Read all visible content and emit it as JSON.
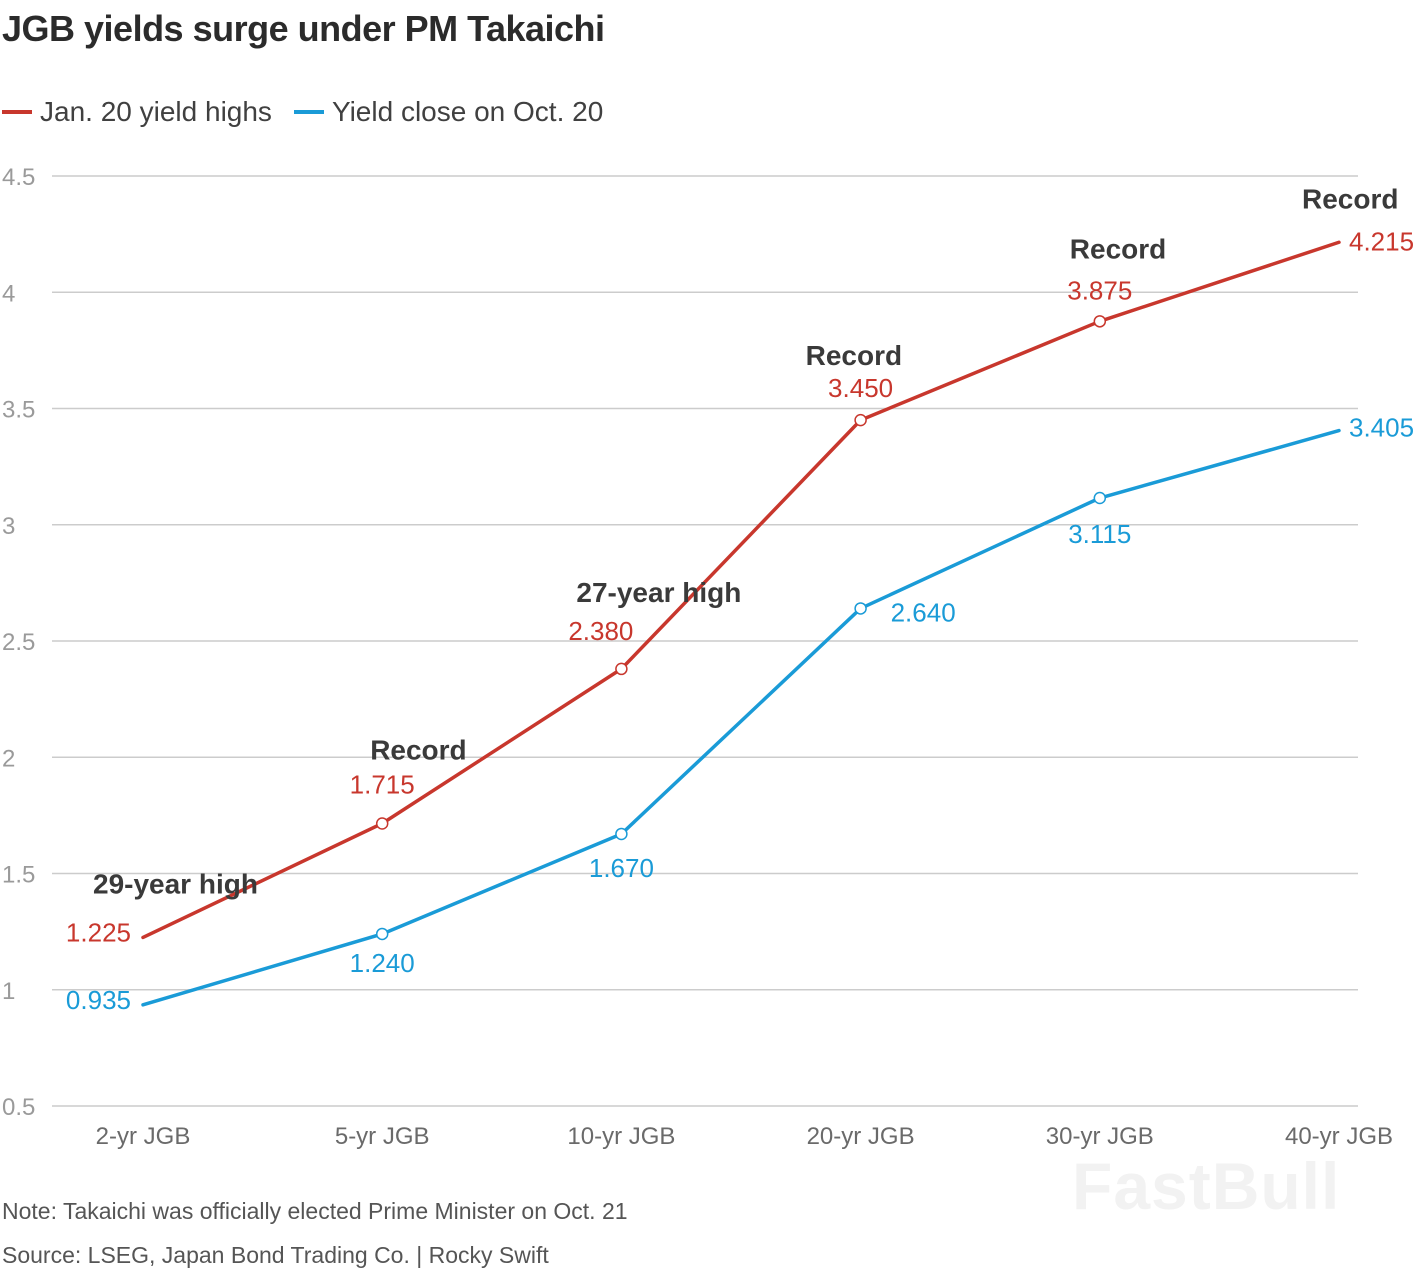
{
  "header": {
    "title": "JGB yields surge under PM Takaichi"
  },
  "legend": [
    {
      "label": "Jan. 20 yield highs",
      "color": "#c8372d"
    },
    {
      "label": "Yield close on Oct. 20",
      "color": "#1a9bd7"
    }
  ],
  "chart_data": {
    "type": "line",
    "title": "JGB yields surge under PM Takaichi",
    "xlabel": "",
    "ylabel": "",
    "categories": [
      "2-yr JGB",
      "5-yr JGB",
      "10-yr JGB",
      "20-yr JGB",
      "30-yr JGB",
      "40-yr JGB"
    ],
    "ylim": [
      0.5,
      4.5
    ],
    "yticks": [
      "0.5",
      "1",
      "1.5",
      "2",
      "2.5",
      "3",
      "3.5",
      "4",
      "4.5"
    ],
    "grid": "horizontal",
    "legend_position": "top-left",
    "series": [
      {
        "name": "Jan. 20 yield highs",
        "color": "#c8372d",
        "values": [
          1.225,
          1.715,
          2.38,
          3.45,
          3.875,
          4.215
        ],
        "labels": [
          "1.225",
          "1.715",
          "2.380",
          "3.450",
          "3.875",
          "4.215"
        ]
      },
      {
        "name": "Yield close on Oct. 20",
        "color": "#1a9bd7",
        "values": [
          0.935,
          1.24,
          1.67,
          2.64,
          3.115,
          3.405
        ],
        "labels": [
          "0.935",
          "1.240",
          "1.670",
          "2.640",
          "3.115",
          "3.405"
        ]
      }
    ],
    "annotations": [
      {
        "index": 0,
        "text": "29-year high"
      },
      {
        "index": 1,
        "text": "Record"
      },
      {
        "index": 2,
        "text": "27-year high"
      },
      {
        "index": 3,
        "text": "Record"
      },
      {
        "index": 4,
        "text": "Record"
      },
      {
        "index": 5,
        "text": "Record"
      }
    ]
  },
  "footer": {
    "note": "Note: Takaichi was officially elected Prime Minister on Oct. 21",
    "source": "Source: LSEG, Japan Bond Trading Co. | Rocky Swift"
  },
  "watermark": "FastBull"
}
